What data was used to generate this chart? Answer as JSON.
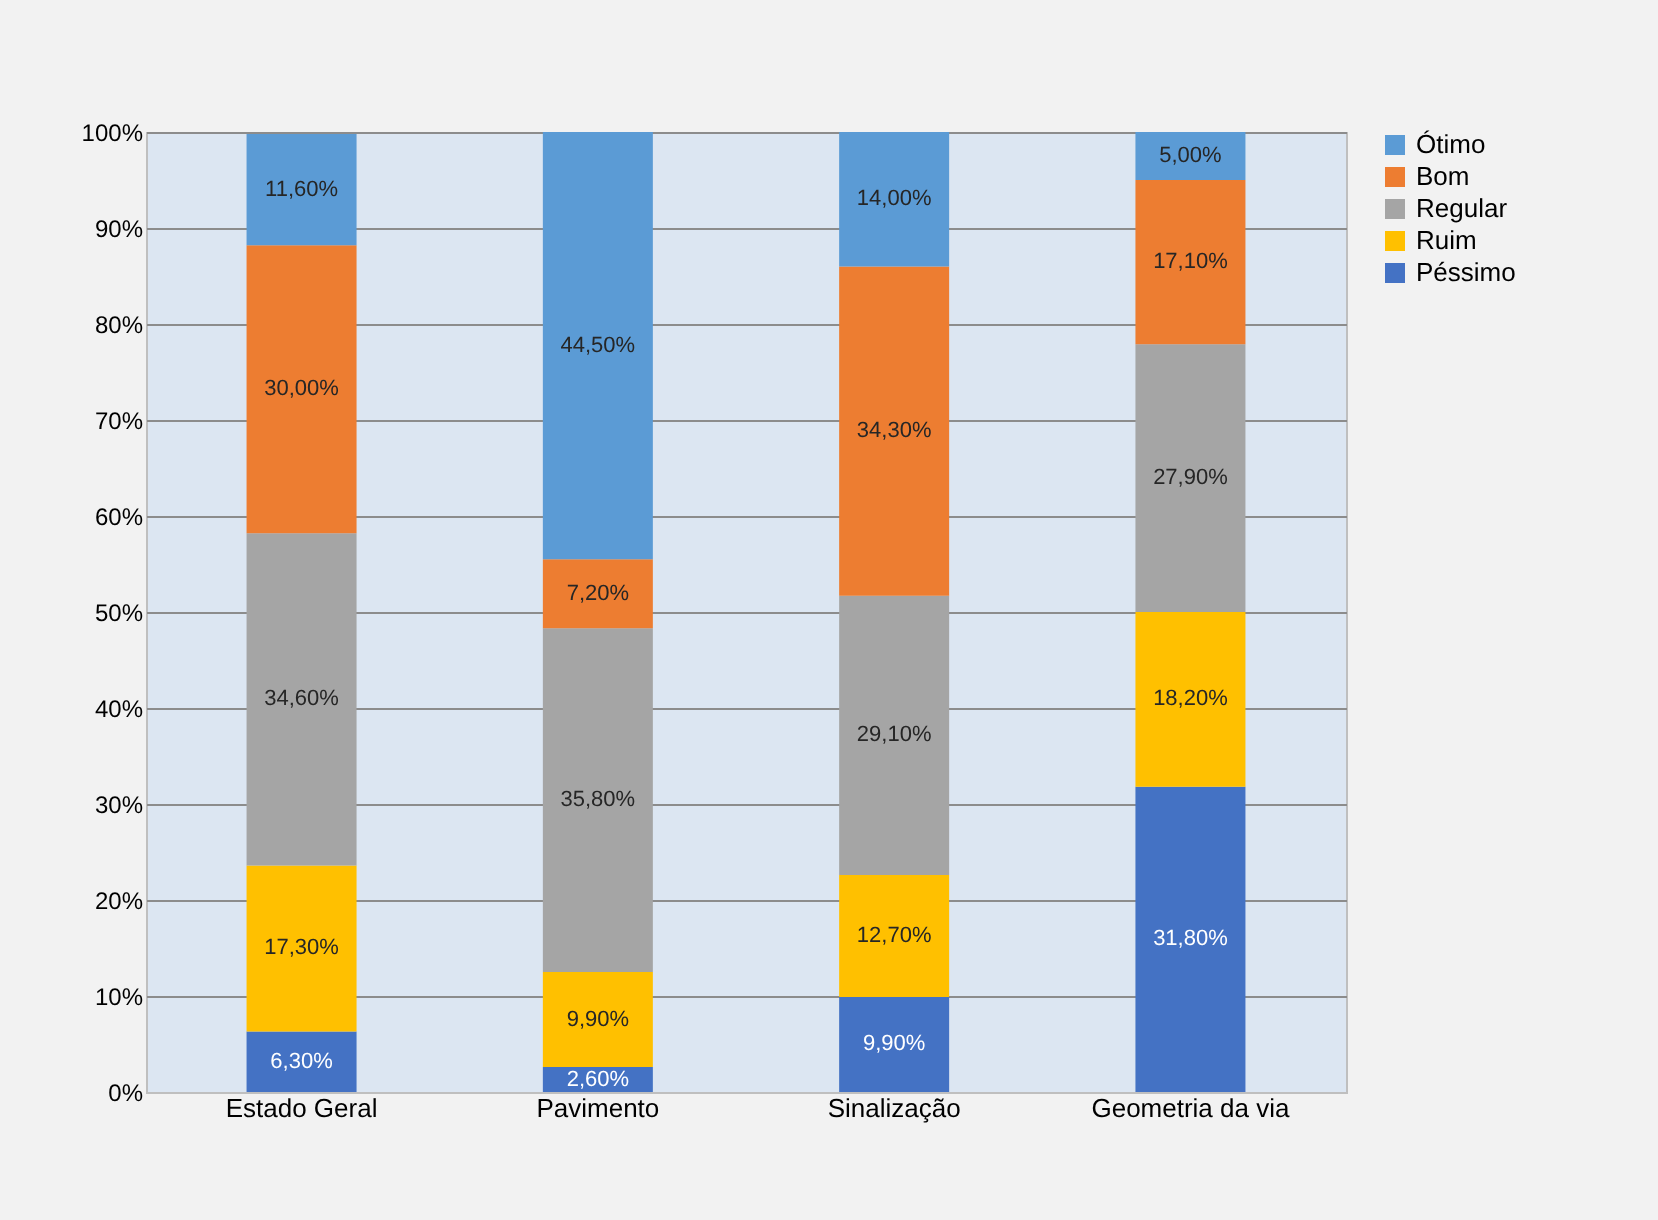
{
  "chart_data": {
    "type": "bar",
    "stacked": true,
    "categories": [
      "Estado Geral",
      "Pavimento",
      "Sinalização",
      "Geometria da via"
    ],
    "series": [
      {
        "name": "Péssimo",
        "color": "#4472c4",
        "values": [
          6.3,
          2.6,
          9.9,
          31.8
        ],
        "value_labels": [
          "6,30%",
          "2,60%",
          "9,90%",
          "31,80%"
        ]
      },
      {
        "name": "Ruim",
        "color": "#ffc000",
        "values": [
          17.3,
          9.9,
          12.7,
          18.2
        ],
        "value_labels": [
          "17,30%",
          "9,90%",
          "12,70%",
          "18,20%"
        ]
      },
      {
        "name": "Regular",
        "color": "#a5a5a5",
        "values": [
          34.6,
          35.8,
          29.1,
          27.9
        ],
        "value_labels": [
          "34,60%",
          "35,80%",
          "29,10%",
          "27,90%"
        ]
      },
      {
        "name": "Bom",
        "color": "#ed7d31",
        "values": [
          30.0,
          7.2,
          34.3,
          17.1
        ],
        "value_labels": [
          "30,00%",
          "7,20%",
          "34,30%",
          "17,10%"
        ]
      },
      {
        "name": "Ótimo",
        "color": "#5b9bd5",
        "values": [
          11.6,
          44.5,
          14.0,
          5.0
        ],
        "value_labels": [
          "11,60%",
          "44,50%",
          "14,00%",
          "5,00%"
        ]
      }
    ],
    "ylim": [
      0,
      100
    ],
    "yticks": [
      {
        "value": 0,
        "label": "0%"
      },
      {
        "value": 10,
        "label": "10%"
      },
      {
        "value": 20,
        "label": "20%"
      },
      {
        "value": 30,
        "label": "30%"
      },
      {
        "value": 40,
        "label": "40%"
      },
      {
        "value": 50,
        "label": "50%"
      },
      {
        "value": 60,
        "label": "60%"
      },
      {
        "value": 70,
        "label": "70%"
      },
      {
        "value": 80,
        "label": "80%"
      },
      {
        "value": 90,
        "label": "90%"
      },
      {
        "value": 100,
        "label": "100%"
      }
    ],
    "grid": "y",
    "legend": "right"
  }
}
